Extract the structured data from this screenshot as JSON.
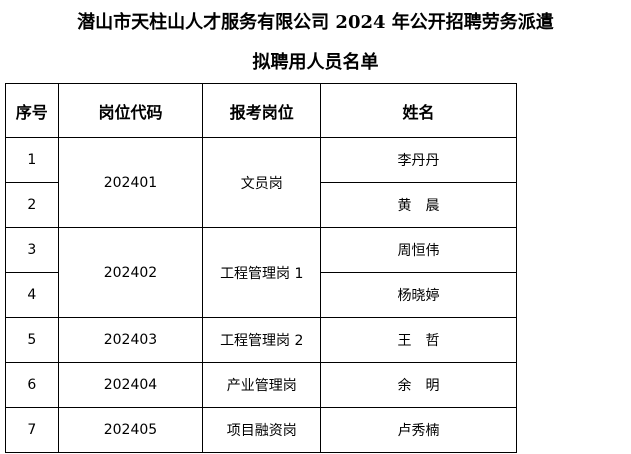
{
  "title": {
    "line1": "潜山市天柱山人才服务有限公司 2024 年公开招聘劳务派遣",
    "line2": "拟聘用人员名单"
  },
  "table": {
    "headers": [
      "序号",
      "岗位代码",
      "报考岗位",
      "姓名"
    ],
    "groups": [
      {
        "code": "202401",
        "position": "文员岗",
        "rows": [
          {
            "no": "1",
            "name": "李丹丹"
          },
          {
            "no": "2",
            "name": "黄　晨"
          }
        ]
      },
      {
        "code": "202402",
        "position": "工程管理岗 1",
        "rows": [
          {
            "no": "3",
            "name": "周恒伟"
          },
          {
            "no": "4",
            "name": "杨晓婷"
          }
        ]
      },
      {
        "code": "202403",
        "position": "工程管理岗 2",
        "rows": [
          {
            "no": "5",
            "name": "王　哲"
          }
        ]
      },
      {
        "code": "202404",
        "position": "产业管理岗",
        "rows": [
          {
            "no": "6",
            "name": "余　明"
          }
        ]
      },
      {
        "code": "202405",
        "position": "项目融资岗",
        "rows": [
          {
            "no": "7",
            "name": "卢秀楠"
          }
        ]
      }
    ]
  }
}
